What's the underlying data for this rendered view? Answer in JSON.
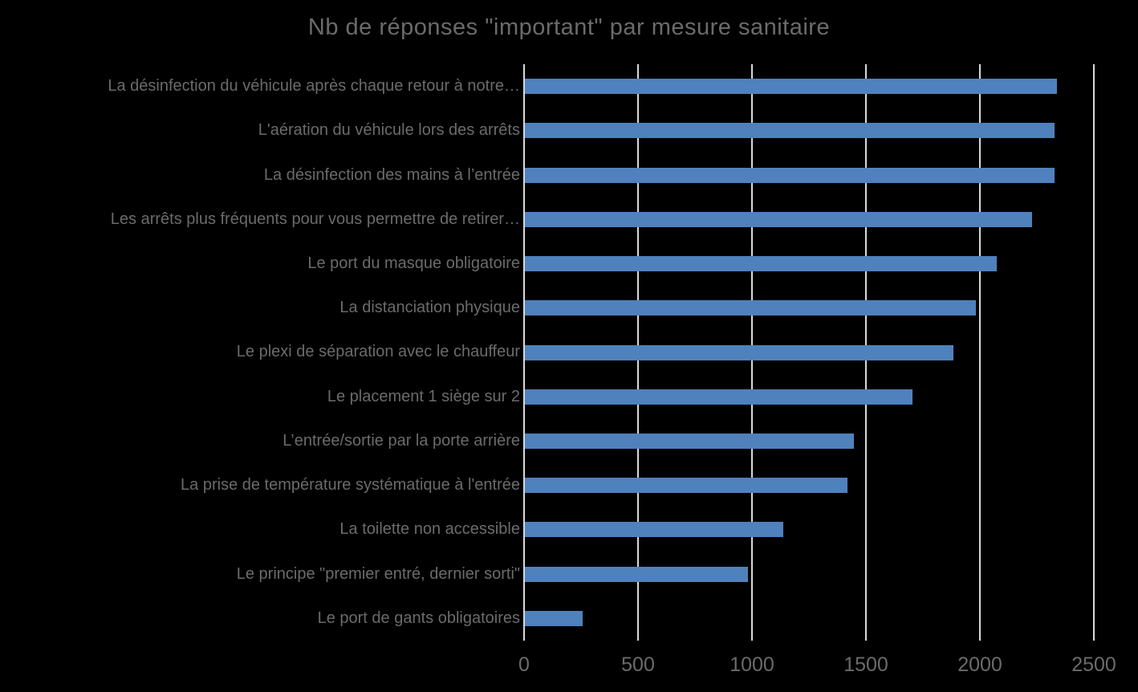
{
  "chart_data": {
    "type": "bar",
    "orientation": "horizontal",
    "title": "Nb de réponses \"important\" par mesure sanitaire",
    "categories": [
      "La désinfection du véhicule après chaque retour à notre…",
      "L'aération du véhicule lors des arrêts",
      "La désinfection des mains à l’entrée",
      "Les arrêts plus fréquents pour vous permettre de retirer…",
      "Le port du masque obligatoire",
      "La distanciation physique",
      "Le plexi de séparation avec le chauffeur",
      "Le placement 1 siège sur 2",
      "L’entrée/sortie par la porte arrière",
      "La prise de température systématique à l'entrée",
      "La toilette non accessible",
      "Le principe \"premier entré, dernier sorti\"",
      "Le port de gants obligatoires"
    ],
    "values": [
      2335,
      2325,
      2325,
      2225,
      2070,
      1980,
      1880,
      1700,
      1445,
      1415,
      1135,
      980,
      255
    ],
    "xlabel": "",
    "ylabel": "",
    "xlim": [
      0,
      2500
    ],
    "x_ticks": [
      0,
      500,
      1000,
      1500,
      2000,
      2500
    ],
    "grid": "vertical",
    "legend": "none",
    "colors": {
      "bar": "#4F81BD",
      "gridline": "#D9D9D9",
      "text": "#6B6B6B",
      "background": "#000000"
    }
  }
}
